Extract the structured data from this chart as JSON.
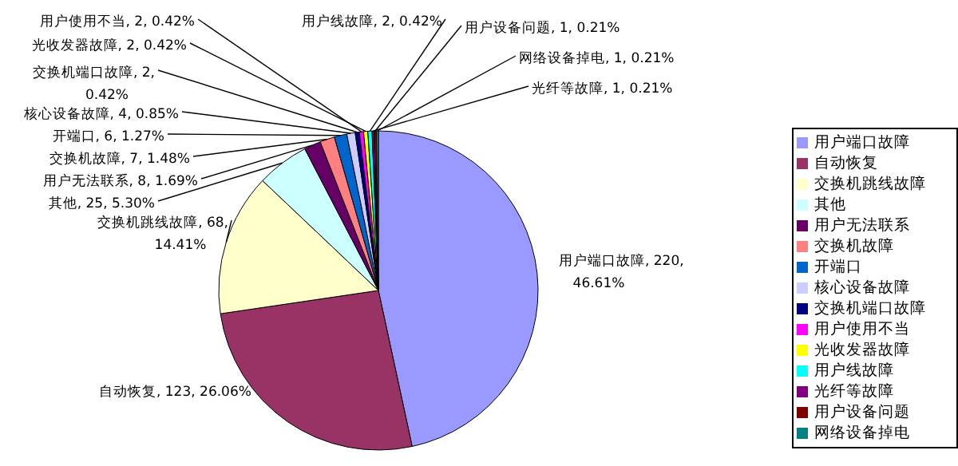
{
  "chart_data": {
    "type": "pie",
    "categories": [
      "用户端口故障",
      "自动恢复",
      "交换机跳线故障",
      "其他",
      "用户无法联系",
      "交换机故障",
      "开端口",
      "核心设备故障",
      "交换机端口故障",
      "用户使用不当",
      "光收发器故障",
      "用户线故障",
      "光纤等故障",
      "用户设备问题",
      "网络设备掉电"
    ],
    "values": [
      220,
      123,
      68,
      25,
      8,
      7,
      6,
      4,
      2,
      2,
      2,
      2,
      1,
      1,
      1
    ],
    "value_labels": [
      "用户端口故障, 220, 46.61%",
      "自动恢复, 123, 26.06%",
      "交换机跳线故障, 68, 14.41%",
      "其他, 25, 5.30%",
      "用户无法联系, 8, 1.69%",
      "交换机故障, 7, 1.48%",
      "开端口, 6, 1.27%",
      "核心设备故障, 4, 0.85%",
      "交换机端口故障, 2, 0.42%",
      "用户使用不当, 2, 0.42%",
      "光收发器故障, 2, 0.42%",
      "用户线故障, 2, 0.42%",
      "光纤等故障, 1, 0.21%",
      "用户设备问题, 1, 0.21%",
      "网络设备掉电, 1, 0.21%"
    ],
    "colors": [
      "#9999ff",
      "#993366",
      "#ffffcc",
      "#ccffff",
      "#660066",
      "#ff8080",
      "#0066cc",
      "#ccccff",
      "#000080",
      "#ff00ff",
      "#ffff00",
      "#00ffff",
      "#800080",
      "#800000",
      "#008080"
    ],
    "legend": "right"
  }
}
